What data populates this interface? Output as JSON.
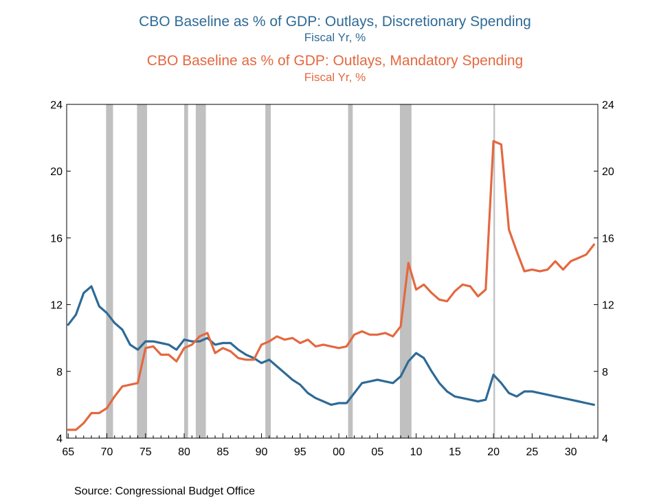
{
  "chart_data": {
    "type": "line",
    "titles": [
      {
        "text": "CBO Baseline as % of GDP: Outlays, Discretionary Spending",
        "subtitle": "Fiscal Yr, %",
        "color": "#2e6a96"
      },
      {
        "text": "CBO Baseline as % of GDP: Outlays, Mandatory Spending",
        "subtitle": "Fiscal Yr, %",
        "color": "#e4683f"
      }
    ],
    "x_tick_labels": [
      "65",
      "70",
      "75",
      "80",
      "85",
      "90",
      "95",
      "00",
      "05",
      "10",
      "15",
      "20",
      "25",
      "30"
    ],
    "x_tick_years": [
      1965,
      1970,
      1975,
      1980,
      1985,
      1990,
      1995,
      2000,
      2005,
      2010,
      2015,
      2020,
      2025,
      2030
    ],
    "y_tick_labels": [
      "4",
      "8",
      "12",
      "16",
      "20",
      "24"
    ],
    "ylim": [
      4,
      24
    ],
    "xlim": [
      1964.8,
      2033.5
    ],
    "recessions": [
      [
        1969.9,
        1970.8
      ],
      [
        1973.9,
        1975.2
      ],
      [
        1980.0,
        1980.5
      ],
      [
        1981.5,
        1982.8
      ],
      [
        1990.5,
        1991.2
      ],
      [
        2001.2,
        2001.8
      ],
      [
        2007.9,
        2009.4
      ],
      [
        2020.0,
        2020.2
      ]
    ],
    "series": [
      {
        "color": "#2e6a96",
        "points": [
          [
            1965,
            10.8
          ],
          [
            1966,
            11.4
          ],
          [
            1967,
            12.7
          ],
          [
            1968,
            13.1
          ],
          [
            1969,
            11.9
          ],
          [
            1970,
            11.5
          ],
          [
            1971,
            10.9
          ],
          [
            1972,
            10.5
          ],
          [
            1973,
            9.6
          ],
          [
            1974,
            9.3
          ],
          [
            1975,
            9.8
          ],
          [
            1976,
            9.8
          ],
          [
            1977,
            9.7
          ],
          [
            1978,
            9.6
          ],
          [
            1979,
            9.3
          ],
          [
            1980,
            9.9
          ],
          [
            1981,
            9.8
          ],
          [
            1982,
            9.8
          ],
          [
            1983,
            10.0
          ],
          [
            1984,
            9.6
          ],
          [
            1985,
            9.7
          ],
          [
            1986,
            9.7
          ],
          [
            1987,
            9.3
          ],
          [
            1988,
            9.0
          ],
          [
            1989,
            8.8
          ],
          [
            1990,
            8.5
          ],
          [
            1991,
            8.7
          ],
          [
            1992,
            8.3
          ],
          [
            1993,
            7.9
          ],
          [
            1994,
            7.5
          ],
          [
            1995,
            7.2
          ],
          [
            1996,
            6.7
          ],
          [
            1997,
            6.4
          ],
          [
            1998,
            6.2
          ],
          [
            1999,
            6.0
          ],
          [
            2000,
            6.1
          ],
          [
            2001,
            6.1
          ],
          [
            2002,
            6.7
          ],
          [
            2003,
            7.3
          ],
          [
            2004,
            7.4
          ],
          [
            2005,
            7.5
          ],
          [
            2006,
            7.4
          ],
          [
            2007,
            7.3
          ],
          [
            2008,
            7.7
          ],
          [
            2009,
            8.6
          ],
          [
            2010,
            9.1
          ],
          [
            2011,
            8.8
          ],
          [
            2012,
            8.0
          ],
          [
            2013,
            7.3
          ],
          [
            2014,
            6.8
          ],
          [
            2015,
            6.5
          ],
          [
            2016,
            6.4
          ],
          [
            2017,
            6.3
          ],
          [
            2018,
            6.2
          ],
          [
            2019,
            6.3
          ],
          [
            2020,
            7.8
          ],
          [
            2021,
            7.3
          ],
          [
            2022,
            6.7
          ],
          [
            2023,
            6.5
          ],
          [
            2024,
            6.8
          ],
          [
            2025,
            6.8
          ],
          [
            2026,
            6.7
          ],
          [
            2027,
            6.6
          ],
          [
            2028,
            6.5
          ],
          [
            2029,
            6.4
          ],
          [
            2030,
            6.3
          ],
          [
            2031,
            6.2
          ],
          [
            2032,
            6.1
          ],
          [
            2033,
            6.0
          ]
        ]
      },
      {
        "color": "#e4683f",
        "points": [
          [
            1965,
            4.5
          ],
          [
            1966,
            4.5
          ],
          [
            1967,
            4.9
          ],
          [
            1968,
            5.5
          ],
          [
            1969,
            5.5
          ],
          [
            1970,
            5.8
          ],
          [
            1971,
            6.5
          ],
          [
            1972,
            7.1
          ],
          [
            1973,
            7.2
          ],
          [
            1974,
            7.3
          ],
          [
            1975,
            9.4
          ],
          [
            1976,
            9.5
          ],
          [
            1977,
            9.0
          ],
          [
            1978,
            9.0
          ],
          [
            1979,
            8.6
          ],
          [
            1980,
            9.4
          ],
          [
            1981,
            9.6
          ],
          [
            1982,
            10.1
          ],
          [
            1983,
            10.3
          ],
          [
            1984,
            9.1
          ],
          [
            1985,
            9.4
          ],
          [
            1986,
            9.2
          ],
          [
            1987,
            8.8
          ],
          [
            1988,
            8.7
          ],
          [
            1989,
            8.7
          ],
          [
            1990,
            9.6
          ],
          [
            1991,
            9.8
          ],
          [
            1992,
            10.1
          ],
          [
            1993,
            9.9
          ],
          [
            1994,
            10.0
          ],
          [
            1995,
            9.7
          ],
          [
            1996,
            9.9
          ],
          [
            1997,
            9.5
          ],
          [
            1998,
            9.6
          ],
          [
            1999,
            9.5
          ],
          [
            2000,
            9.4
          ],
          [
            2001,
            9.5
          ],
          [
            2002,
            10.2
          ],
          [
            2003,
            10.4
          ],
          [
            2004,
            10.2
          ],
          [
            2005,
            10.2
          ],
          [
            2006,
            10.3
          ],
          [
            2007,
            10.1
          ],
          [
            2008,
            10.7
          ],
          [
            2009,
            14.5
          ],
          [
            2010,
            12.9
          ],
          [
            2011,
            13.2
          ],
          [
            2012,
            12.7
          ],
          [
            2013,
            12.3
          ],
          [
            2014,
            12.2
          ],
          [
            2015,
            12.8
          ],
          [
            2016,
            13.2
          ],
          [
            2017,
            13.1
          ],
          [
            2018,
            12.5
          ],
          [
            2019,
            12.9
          ],
          [
            2020,
            21.8
          ],
          [
            2021,
            21.6
          ],
          [
            2022,
            16.5
          ],
          [
            2023,
            15.2
          ],
          [
            2024,
            14.0
          ],
          [
            2025,
            14.1
          ],
          [
            2026,
            14.0
          ],
          [
            2027,
            14.1
          ],
          [
            2028,
            14.6
          ],
          [
            2029,
            14.1
          ],
          [
            2030,
            14.6
          ],
          [
            2031,
            14.8
          ],
          [
            2032,
            15.0
          ],
          [
            2033,
            15.6
          ]
        ]
      }
    ]
  },
  "source": "Source:  Congressional Budget Office"
}
